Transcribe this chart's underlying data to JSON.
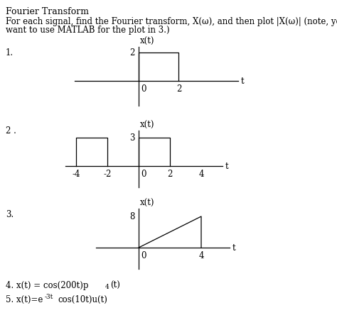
{
  "title": "Fourier Transform",
  "desc_line1": "For each signal, find the Fourier transform, X(ω), and then plot |X(ω)| (note, you may",
  "desc_line2": "want to use MATLAB for the plot in 3.)",
  "background_color": "#ffffff",
  "text_color": "#000000",
  "font_size": 8.5,
  "title_font_size": 9
}
